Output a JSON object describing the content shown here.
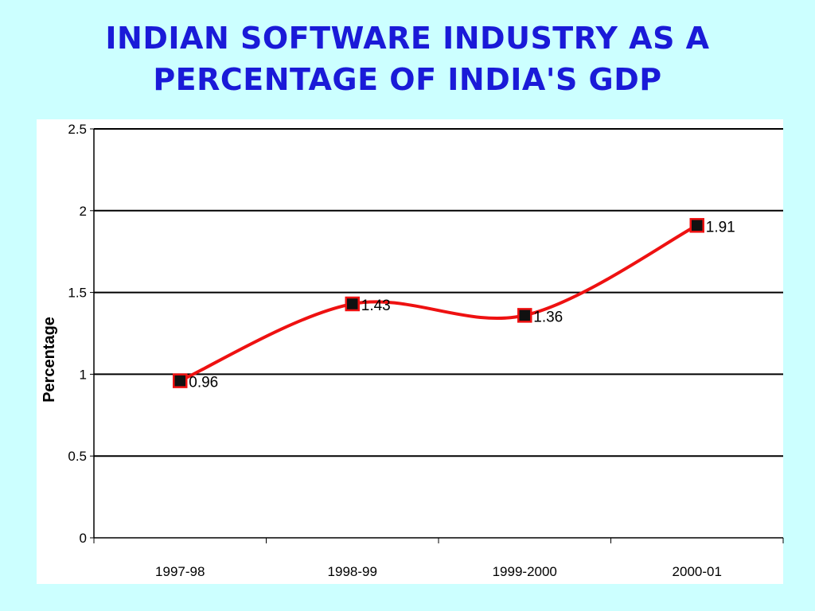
{
  "title": {
    "line1": "INDIAN SOFTWARE INDUSTRY AS A",
    "line2": "PERCENTAGE OF INDIA'S GDP"
  },
  "chart_data": {
    "type": "line",
    "categories": [
      "1997-98",
      "1998-99",
      "1999-2000",
      "2000-01"
    ],
    "series": [
      {
        "values": [
          0.96,
          1.43,
          1.36,
          1.91
        ]
      }
    ],
    "data_labels": [
      "0.96",
      "1.43",
      "1.36",
      "1.91"
    ],
    "ylabel": "Percentage",
    "xlabel": "",
    "ylim": [
      0,
      2.5
    ],
    "yticks": [
      "0",
      "0.5",
      "1",
      "1.5",
      "2",
      "2.5"
    ],
    "grid": true,
    "legend": "none",
    "colors": {
      "line": "#ee1111",
      "marker_fill": "#111111",
      "marker_edge": "#ee1111",
      "title": "#1a1ad8",
      "background": "#ccffff"
    }
  }
}
